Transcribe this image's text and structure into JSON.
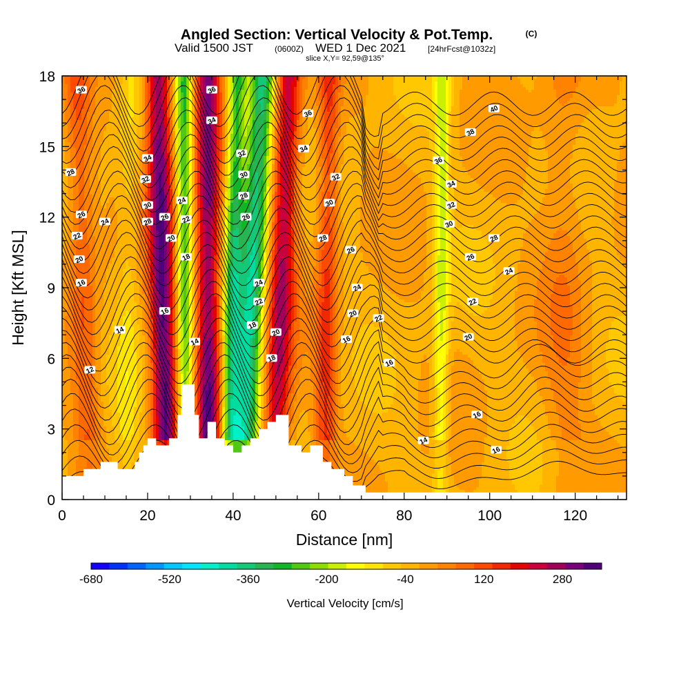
{
  "title": {
    "main": "Angled Section: Vertical Velocity & Pot.Temp.",
    "copyright": "(C)",
    "valid_prefix": "Valid 1500 JST",
    "valid_utc": "(0600Z)",
    "valid_date": "WED 1 Dec 2021",
    "forecast": "[24hrFcst@1032z]",
    "slice": "slice X,Y= 92,59@135°"
  },
  "chart_data": {
    "type": "heatmap",
    "variable": "Vertical Velocity & Pot.Temp.",
    "xlabel": "Distance [nm]",
    "ylabel": "Height [Kft MSL]",
    "xlim": [
      0,
      132
    ],
    "ylim": [
      0,
      18
    ],
    "x_ticks": [
      0,
      20,
      40,
      60,
      80,
      100,
      120
    ],
    "y_ticks": [
      0,
      3,
      6,
      9,
      12,
      15,
      18
    ],
    "colorbar": {
      "title": "Vertical Velocity [cm/s]",
      "min": -680,
      "max": 360,
      "tick_labels": [
        -680,
        -520,
        -360,
        -200,
        -40,
        120,
        280
      ],
      "colors": [
        "#1400ff",
        "#0032ff",
        "#0064ff",
        "#0096ff",
        "#00c8ff",
        "#00e6ff",
        "#00f0c8",
        "#00dca0",
        "#14c878",
        "#28b450",
        "#14b428",
        "#50c814",
        "#8cdc00",
        "#c8f000",
        "#ffff00",
        "#ffe600",
        "#ffc800",
        "#ffb400",
        "#ff9a00",
        "#ff8200",
        "#ff6a00",
        "#ff4b00",
        "#f02800",
        "#e60000",
        "#c8003c",
        "#a0005a",
        "#780078",
        "#500078"
      ]
    },
    "terrain": [
      [
        0,
        1.0
      ],
      [
        5,
        1.0
      ],
      [
        5,
        1.3
      ],
      [
        9,
        1.3
      ],
      [
        9,
        1.6
      ],
      [
        13,
        1.6
      ],
      [
        13,
        1.3
      ],
      [
        17,
        1.3
      ],
      [
        17,
        1.6
      ],
      [
        18,
        1.6
      ],
      [
        18,
        2.0
      ],
      [
        19,
        2.0
      ],
      [
        19,
        2.3
      ],
      [
        20,
        2.3
      ],
      [
        20,
        2.6
      ],
      [
        22,
        2.6
      ],
      [
        22,
        2.3
      ],
      [
        25,
        2.3
      ],
      [
        25,
        2.6
      ],
      [
        27,
        2.6
      ],
      [
        27,
        3.6
      ],
      [
        28,
        3.6
      ],
      [
        28,
        4.9
      ],
      [
        31,
        4.9
      ],
      [
        31,
        3.6
      ],
      [
        32,
        3.6
      ],
      [
        32,
        2.6
      ],
      [
        34,
        2.6
      ],
      [
        34,
        3.3
      ],
      [
        36,
        3.3
      ],
      [
        36,
        2.6
      ],
      [
        38,
        2.6
      ],
      [
        38,
        2.3
      ],
      [
        40,
        2.3
      ],
      [
        40,
        2.0
      ],
      [
        42,
        2.0
      ],
      [
        42,
        2.3
      ],
      [
        44,
        2.3
      ],
      [
        44,
        2.6
      ],
      [
        46,
        2.6
      ],
      [
        46,
        3.0
      ],
      [
        48,
        3.0
      ],
      [
        48,
        3.3
      ],
      [
        50,
        3.3
      ],
      [
        50,
        3.6
      ],
      [
        53,
        3.6
      ],
      [
        53,
        2.3
      ],
      [
        56,
        2.3
      ],
      [
        56,
        2.0
      ],
      [
        58,
        2.0
      ],
      [
        58,
        2.3
      ],
      [
        61,
        2.3
      ],
      [
        61,
        1.6
      ],
      [
        63,
        1.6
      ],
      [
        63,
        1.3
      ],
      [
        66,
        1.3
      ],
      [
        66,
        1.0
      ],
      [
        68,
        1.0
      ],
      [
        68,
        0.6
      ],
      [
        71,
        0.6
      ],
      [
        71,
        0.3
      ],
      [
        132,
        0.3
      ],
      [
        132,
        0
      ]
    ],
    "velocity_bands": [
      {
        "x0": 6.5,
        "x1": 3.5,
        "w": 3.2,
        "v": 120
      },
      {
        "x0": 24.5,
        "x1": 22.5,
        "w": 3.0,
        "v": 340
      },
      {
        "x0": 34.5,
        "x1": 34.0,
        "w": 3.0,
        "v": 320
      },
      {
        "x0": 42.0,
        "x1": 47.0,
        "w": 3.2,
        "v": -360
      },
      {
        "x0": 39.0,
        "x1": 41.0,
        "w": 2.2,
        "v": -280
      },
      {
        "x0": 49.5,
        "x1": 53.0,
        "w": 3.2,
        "v": 260
      },
      {
        "x0": 61.5,
        "x1": 62.5,
        "w": 2.5,
        "v": 160
      },
      {
        "x0": 29.0,
        "x1": 28.5,
        "w": 2.0,
        "v": -250
      },
      {
        "x0": 15.0,
        "x1": 16.0,
        "w": 2.5,
        "v": -60
      },
      {
        "x0": 88.5,
        "x1": 89.0,
        "w": 1.8,
        "v": -150
      },
      {
        "x0": 118.0,
        "x1": 117.0,
        "w": 5.0,
        "v": 60
      }
    ],
    "contour_labels": [
      {
        "x": 4.5,
        "y": 17.4,
        "text": "36"
      },
      {
        "x": 2.0,
        "y": 13.9,
        "text": "28"
      },
      {
        "x": 4.5,
        "y": 12.1,
        "text": "26"
      },
      {
        "x": 3.5,
        "y": 11.2,
        "text": "22"
      },
      {
        "x": 4.0,
        "y": 10.2,
        "text": "20"
      },
      {
        "x": 4.5,
        "y": 9.2,
        "text": "16"
      },
      {
        "x": 10.0,
        "y": 11.8,
        "text": "24"
      },
      {
        "x": 13.5,
        "y": 7.2,
        "text": "14"
      },
      {
        "x": 6.5,
        "y": 5.5,
        "text": "12"
      },
      {
        "x": 20.0,
        "y": 14.5,
        "text": "34"
      },
      {
        "x": 19.5,
        "y": 13.6,
        "text": "32"
      },
      {
        "x": 20.0,
        "y": 12.5,
        "text": "30"
      },
      {
        "x": 20.0,
        "y": 11.8,
        "text": "28"
      },
      {
        "x": 24.0,
        "y": 12.0,
        "text": "26"
      },
      {
        "x": 28.0,
        "y": 12.7,
        "text": "24"
      },
      {
        "x": 29.0,
        "y": 11.9,
        "text": "22"
      },
      {
        "x": 25.5,
        "y": 11.1,
        "text": "20"
      },
      {
        "x": 29.0,
        "y": 10.3,
        "text": "18"
      },
      {
        "x": 24.0,
        "y": 8.0,
        "text": "16"
      },
      {
        "x": 31.0,
        "y": 6.7,
        "text": "14"
      },
      {
        "x": 35.0,
        "y": 17.4,
        "text": "36"
      },
      {
        "x": 35.0,
        "y": 16.1,
        "text": "34"
      },
      {
        "x": 42.0,
        "y": 14.7,
        "text": "32"
      },
      {
        "x": 42.5,
        "y": 13.8,
        "text": "30"
      },
      {
        "x": 42.5,
        "y": 12.9,
        "text": "28"
      },
      {
        "x": 43.0,
        "y": 12.0,
        "text": "26"
      },
      {
        "x": 46.0,
        "y": 9.2,
        "text": "24"
      },
      {
        "x": 46.0,
        "y": 8.4,
        "text": "22"
      },
      {
        "x": 44.5,
        "y": 7.4,
        "text": "18"
      },
      {
        "x": 50.0,
        "y": 7.1,
        "text": "20"
      },
      {
        "x": 49.0,
        "y": 6.0,
        "text": "18"
      },
      {
        "x": 57.5,
        "y": 16.4,
        "text": "36"
      },
      {
        "x": 56.5,
        "y": 14.9,
        "text": "34"
      },
      {
        "x": 64.0,
        "y": 13.7,
        "text": "32"
      },
      {
        "x": 62.5,
        "y": 12.6,
        "text": "30"
      },
      {
        "x": 61.0,
        "y": 11.1,
        "text": "28"
      },
      {
        "x": 67.5,
        "y": 10.6,
        "text": "26"
      },
      {
        "x": 69.0,
        "y": 9.0,
        "text": "24"
      },
      {
        "x": 68.0,
        "y": 7.9,
        "text": "20"
      },
      {
        "x": 74.0,
        "y": 7.7,
        "text": "22"
      },
      {
        "x": 66.5,
        "y": 6.8,
        "text": "16"
      },
      {
        "x": 76.5,
        "y": 5.8,
        "text": "16"
      },
      {
        "x": 101.0,
        "y": 16.6,
        "text": "40"
      },
      {
        "x": 95.5,
        "y": 15.6,
        "text": "38"
      },
      {
        "x": 88.0,
        "y": 14.4,
        "text": "36"
      },
      {
        "x": 91.0,
        "y": 13.4,
        "text": "34"
      },
      {
        "x": 91.0,
        "y": 12.5,
        "text": "32"
      },
      {
        "x": 90.5,
        "y": 11.7,
        "text": "30"
      },
      {
        "x": 101.0,
        "y": 11.1,
        "text": "28"
      },
      {
        "x": 95.5,
        "y": 10.3,
        "text": "26"
      },
      {
        "x": 104.5,
        "y": 9.7,
        "text": "24"
      },
      {
        "x": 96.0,
        "y": 8.4,
        "text": "22"
      },
      {
        "x": 95.0,
        "y": 6.9,
        "text": "20"
      },
      {
        "x": 97.0,
        "y": 3.6,
        "text": "16"
      },
      {
        "x": 84.5,
        "y": 2.5,
        "text": "14"
      },
      {
        "x": 101.5,
        "y": 2.1,
        "text": "16"
      }
    ]
  }
}
